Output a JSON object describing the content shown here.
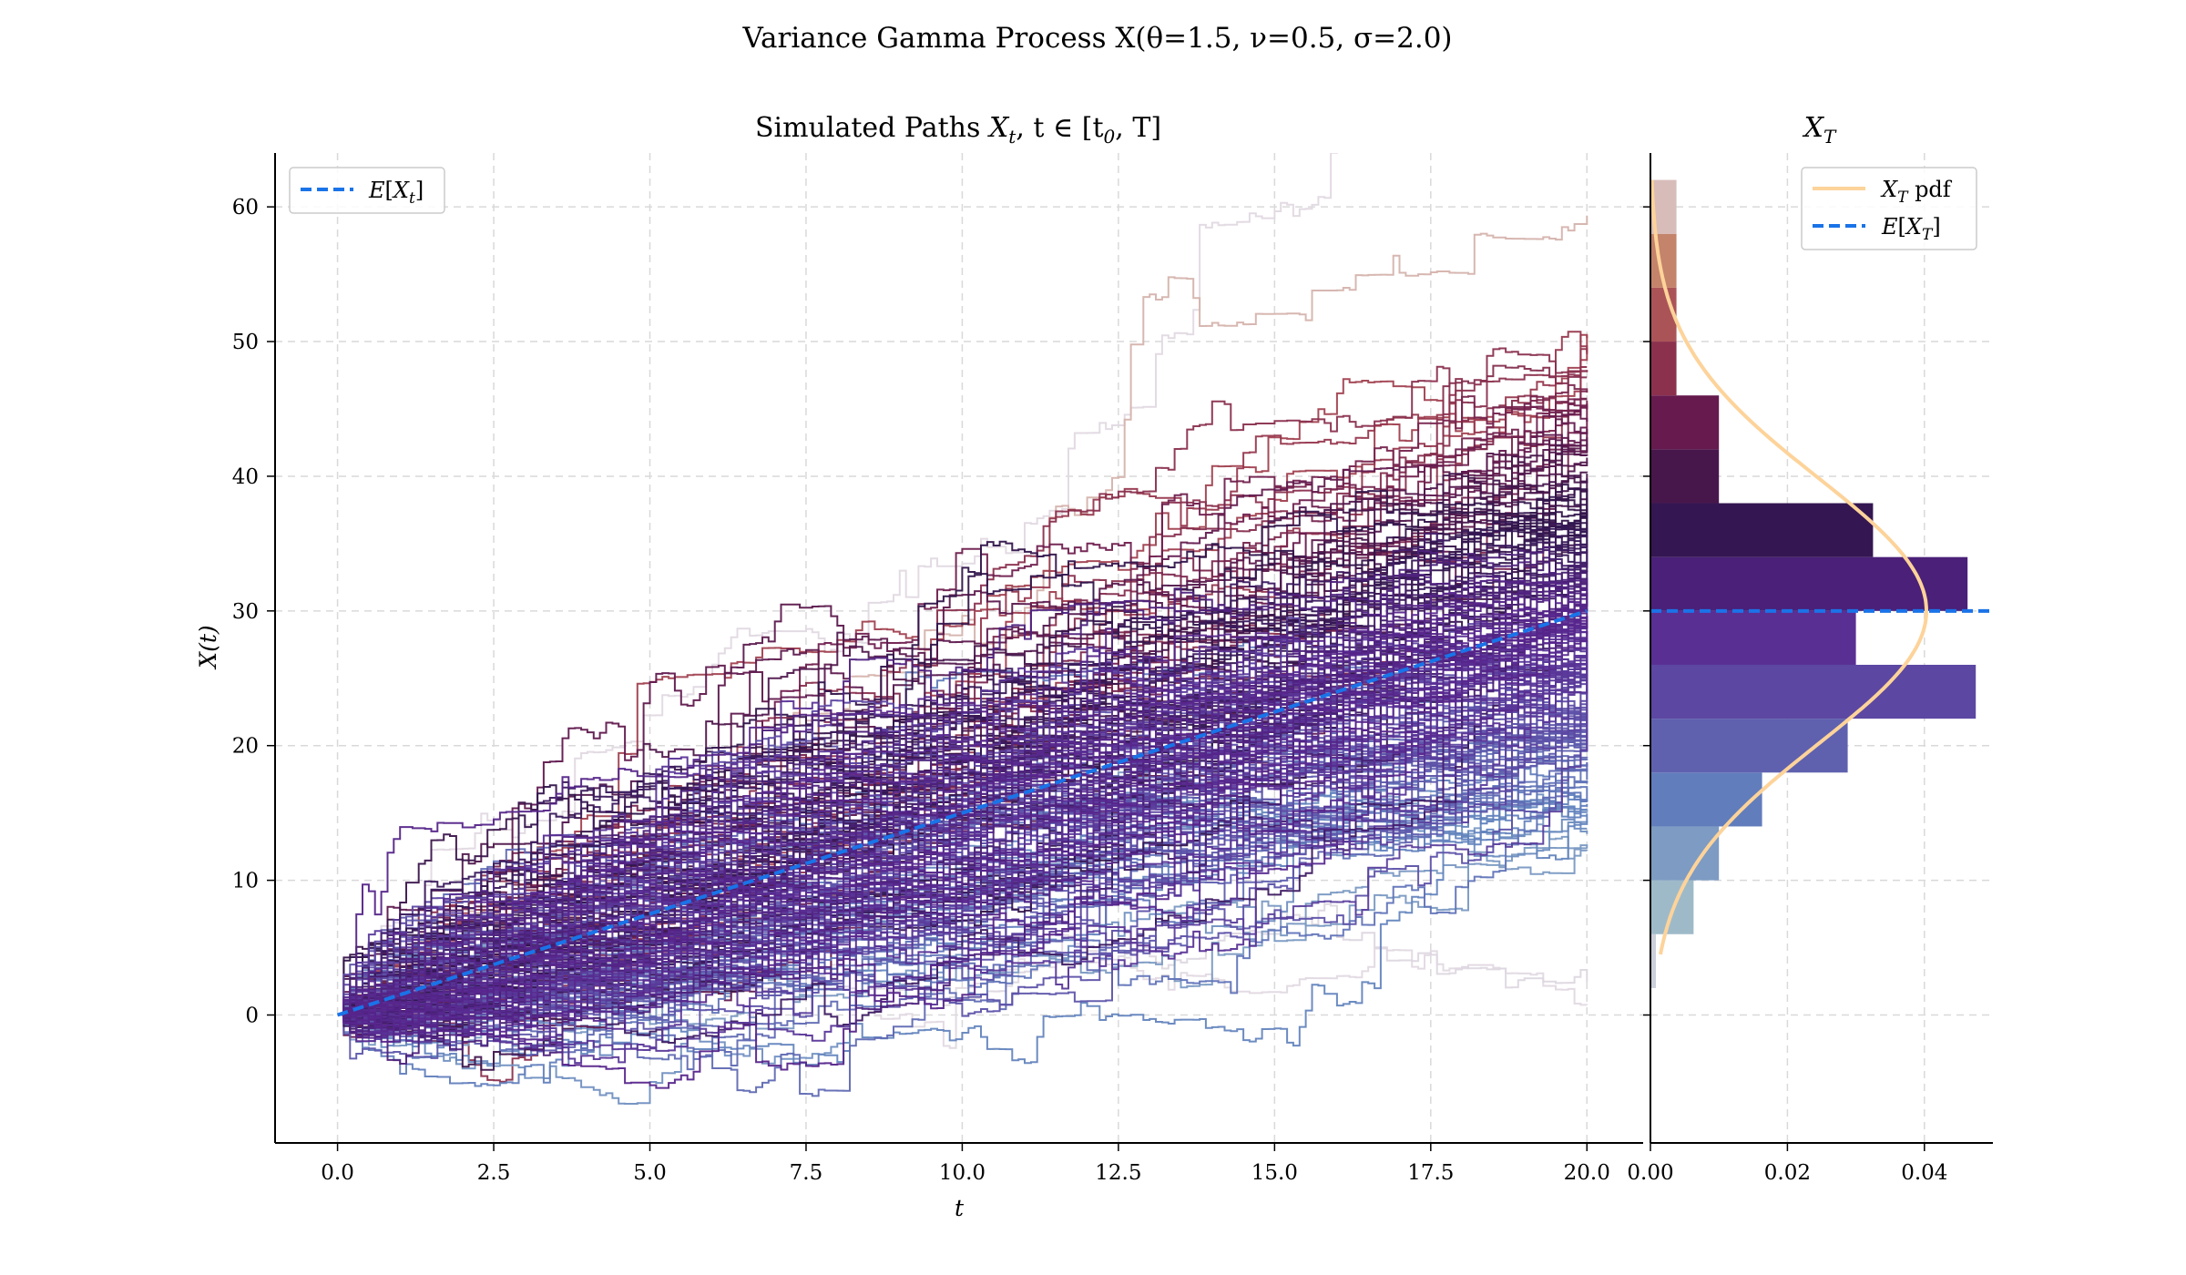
{
  "suptitle": "Variance Gamma Process X(θ=1.5, ν=0.5, σ=2.0)",
  "chart_data": [
    {
      "type": "line",
      "title": "Simulated Paths X_t, t ∈ [t_0, T]",
      "title_parts": {
        "text": "Simulated Paths ",
        "math": "X",
        "math_sub": "t",
        "rest": ", t ∈ [t",
        "rest_sub": "0",
        "end": ", T]"
      },
      "xlabel": "t",
      "ylabel": "X(t)",
      "xlim": [
        -1.0,
        20.9
      ],
      "ylim": [
        -9.5,
        64
      ],
      "x_ticks": [
        "0.0",
        "2.5",
        "5.0",
        "7.5",
        "10.0",
        "12.5",
        "15.0",
        "17.5",
        "20.0"
      ],
      "y_ticks": [
        "0",
        "10",
        "20",
        "30",
        "40",
        "50",
        "60"
      ],
      "grid": true,
      "legend_position": "upper-left",
      "paths": {
        "count": 200,
        "t_start": 0.0,
        "t_end": 20.0,
        "x0": 0.0,
        "description": "simulated step paths coloured by terminal value"
      },
      "series": [
        {
          "name": "E[X_t]",
          "style": "dashed",
          "color": "#1a73e8",
          "x": [
            0,
            20
          ],
          "y": [
            0,
            30
          ]
        }
      ]
    },
    {
      "type": "bar",
      "orientation": "horizontal",
      "title": "X_T",
      "xlim": [
        0.0,
        0.05
      ],
      "ylim": [
        -9.5,
        64
      ],
      "x_ticks": [
        "0.00",
        "0.02",
        "0.04"
      ],
      "grid": true,
      "legend_position": "upper-right",
      "bins": [
        {
          "y0": 2,
          "y1": 6,
          "density": 0.0008
        },
        {
          "y0": 6,
          "y1": 10,
          "density": 0.0063
        },
        {
          "y0": 10,
          "y1": 14,
          "density": 0.01
        },
        {
          "y0": 14,
          "y1": 18,
          "density": 0.0163
        },
        {
          "y0": 18,
          "y1": 22,
          "density": 0.0288
        },
        {
          "y0": 22,
          "y1": 26,
          "density": 0.0475
        },
        {
          "y0": 26,
          "y1": 30,
          "density": 0.03
        },
        {
          "y0": 30,
          "y1": 34,
          "density": 0.0463
        },
        {
          "y0": 34,
          "y1": 38,
          "density": 0.0325
        },
        {
          "y0": 38,
          "y1": 42,
          "density": 0.01
        },
        {
          "y0": 42,
          "y1": 46,
          "density": 0.01
        },
        {
          "y0": 46,
          "y1": 50,
          "density": 0.0038
        },
        {
          "y0": 50,
          "y1": 54,
          "density": 0.0038
        },
        {
          "y0": 54,
          "y1": 58,
          "density": 0.0038
        },
        {
          "y0": 58,
          "y1": 62,
          "density": 0.0038
        }
      ],
      "series": [
        {
          "name": "X_T pdf",
          "color": "#fdd39a",
          "mean": 30,
          "sd": 9.9,
          "y_range": [
            4.5,
            62
          ]
        },
        {
          "name": "E[X_T]",
          "style": "dashed",
          "color": "#1a73e8",
          "y": 30
        }
      ]
    }
  ],
  "legend": {
    "main": {
      "label_math": "E",
      "label_open": "[",
      "label_var": "X",
      "label_sub": "t",
      "label_close": "]"
    },
    "hist_pdf": {
      "label_math": "X",
      "label_sub": "T",
      "label_rest": " pdf"
    },
    "hist_mean": {
      "label_math": "E",
      "label_open": "[",
      "label_var": "X",
      "label_sub": "T",
      "label_close": "]"
    }
  },
  "colors": {
    "expectation_line": "#1a73e8",
    "pdf_line": "#fdd39a",
    "grid": "#d9d9d9"
  }
}
